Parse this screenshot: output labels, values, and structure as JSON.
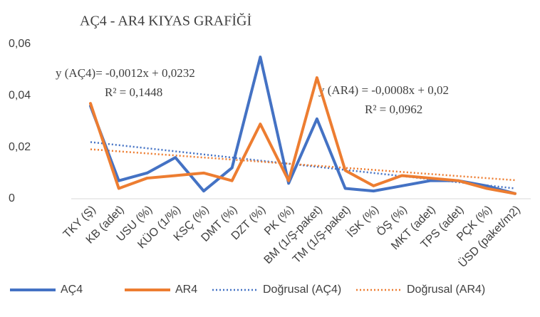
{
  "chart_data": {
    "type": "line",
    "title": "AÇ4 - AR4 KIYAS GRAFİĞİ",
    "categories": [
      "TKY (Ş)",
      "KB (adet)",
      "USU (%)",
      "KÜO (1/%)",
      "KSÇ (%)",
      "DMT (%)",
      "DZT (%)",
      "PK (%)",
      "BM (1/Ş-paket)",
      "TM (1/Ş-paket)",
      "İSK (%)",
      "ÖŞ (%)",
      "MKT (adet)",
      "TPS (adet)",
      "PÇK (%)",
      "ÜSD (paket/m2)"
    ],
    "series": [
      {
        "name": "AÇ4",
        "color": "#4472c4",
        "values": [
          0.036,
          0.007,
          0.01,
          0.016,
          0.003,
          0.012,
          0.055,
          0.006,
          0.031,
          0.004,
          0.003,
          0.005,
          0.007,
          0.007,
          0.005,
          0.002
        ]
      },
      {
        "name": "AR4",
        "color": "#ed7d31",
        "values": [
          0.037,
          0.004,
          0.008,
          0.009,
          0.01,
          0.007,
          0.029,
          0.007,
          0.047,
          0.011,
          0.005,
          0.009,
          0.008,
          0.007,
          0.004,
          0.002
        ]
      }
    ],
    "trendlines": [
      {
        "name": "Doğrusal (AÇ4)",
        "color": "#4472c4",
        "slope": -0.0012,
        "intercept": 0.0232,
        "equation": "y (AÇ4)= -0,0012x + 0,0232",
        "r2": "R² = 0,1448"
      },
      {
        "name": "Doğrusal (AR4)",
        "color": "#ed7d31",
        "slope": -0.0008,
        "intercept": 0.02,
        "equation": "y (AR4) = -0,0008x + 0,02",
        "r2": "R² = 0,0962"
      }
    ],
    "ylim": [
      0,
      0.06
    ],
    "yticks": [
      0,
      {
        "value": 0.02,
        "label": "0,02"
      },
      {
        "value": 0.04,
        "label": "0,04"
      },
      {
        "value": 0.06,
        "label": "0,06"
      }
    ],
    "grid": false,
    "legend": "bottom"
  }
}
